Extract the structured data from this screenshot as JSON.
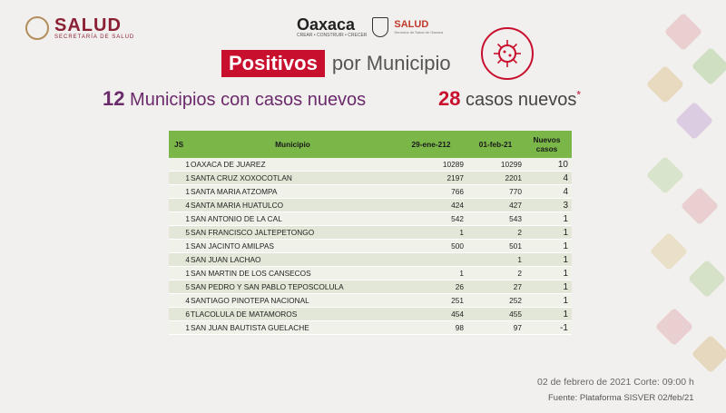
{
  "header": {
    "salud_title": "SALUD",
    "salud_subtitle": "SECRETARÍA DE SALUD",
    "oaxaca_name": "Oaxaca",
    "oaxaca_slogan": "CREAR • CONSTRUIR • CRECER",
    "state_salud": "SALUD",
    "state_salud_sub": "Servicios de Salud de Oaxaca"
  },
  "title": {
    "highlight": "Positivos",
    "rest": "por Municipio"
  },
  "stats": {
    "municipios_count": "12",
    "municipios_label": "Municipios con casos nuevos",
    "cases_count": "28",
    "cases_label": "casos nuevos",
    "cases_mark": "*"
  },
  "table": {
    "headers": {
      "js": "JS",
      "municipio": "Municipio",
      "date1": "29-ene-212",
      "date2": "01-feb-21",
      "new": "Nuevos casos"
    },
    "rows": [
      {
        "js": "1",
        "municipio": "OAXACA DE JUAREZ",
        "date1": "10289",
        "date2": "10299",
        "new": "10"
      },
      {
        "js": "1",
        "municipio": "SANTA CRUZ XOXOCOTLAN",
        "date1": "2197",
        "date2": "2201",
        "new": "4"
      },
      {
        "js": "1",
        "municipio": "SANTA MARIA ATZOMPA",
        "date1": "766",
        "date2": "770",
        "new": "4"
      },
      {
        "js": "4",
        "municipio": "SANTA MARIA HUATULCO",
        "date1": "424",
        "date2": "427",
        "new": "3"
      },
      {
        "js": "1",
        "municipio": "SAN ANTONIO DE LA CAL",
        "date1": "542",
        "date2": "543",
        "new": "1"
      },
      {
        "js": "5",
        "municipio": "SAN FRANCISCO JALTEPETONGO",
        "date1": "1",
        "date2": "2",
        "new": "1"
      },
      {
        "js": "1",
        "municipio": "SAN JACINTO AMILPAS",
        "date1": "500",
        "date2": "501",
        "new": "1"
      },
      {
        "js": "4",
        "municipio": "SAN JUAN LACHAO",
        "date1": "",
        "date2": "1",
        "new": "1"
      },
      {
        "js": "1",
        "municipio": "SAN MARTIN DE LOS CANSECOS",
        "date1": "1",
        "date2": "2",
        "new": "1"
      },
      {
        "js": "5",
        "municipio": "SAN PEDRO Y SAN PABLO TEPOSCOLULA",
        "date1": "26",
        "date2": "27",
        "new": "1"
      },
      {
        "js": "4",
        "municipio": "SANTIAGO PINOTEPA NACIONAL",
        "date1": "251",
        "date2": "252",
        "new": "1"
      },
      {
        "js": "6",
        "municipio": "TLACOLULA DE MATAMOROS",
        "date1": "454",
        "date2": "455",
        "new": "1"
      },
      {
        "js": "1",
        "municipio": "SAN JUAN BAUTISTA GUELACHE",
        "date1": "98",
        "date2": "97",
        "new": "-1"
      }
    ]
  },
  "footer": {
    "date_line": "02 de febrero de 2021 Corte: 09:00 h",
    "source": "Fuente: Plataforma SISVER 02/feb/21"
  },
  "colors": {
    "accent_red": "#c8102e",
    "table_header": "#7ab648",
    "municipios_purple": "#6a2a6b"
  }
}
